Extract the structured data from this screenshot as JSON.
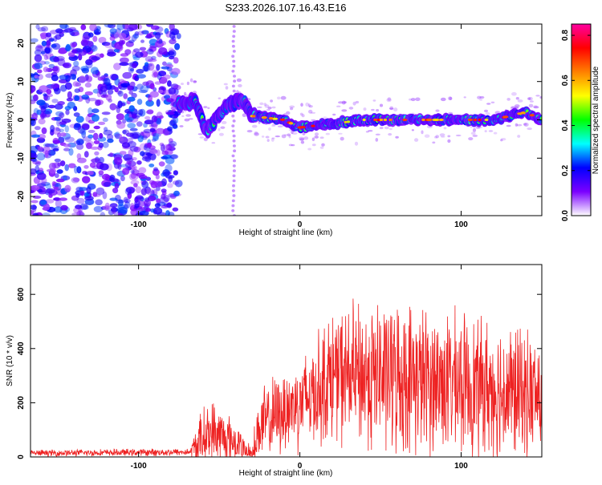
{
  "chart_title": "S233.2026.107.16.43.E16",
  "chart_data": [
    {
      "type": "heatmap",
      "xlabel": "Height of straight line (km)",
      "ylabel": "Frequency (Hz)",
      "xlim": [
        -167,
        150
      ],
      "ylim": [
        -25,
        25
      ],
      "xticks": [
        -100,
        0,
        100
      ],
      "yticks": [
        -20,
        -10,
        0,
        10,
        20
      ],
      "colorbar": {
        "label": "Normalized spectral amplitude",
        "range": [
          0,
          0.85
        ],
        "ticks": [
          0.0,
          0.2,
          0.4,
          0.6,
          0.8
        ],
        "colormap": [
          "#ffffff",
          "#7b00ff",
          "#0000ff",
          "#00ffff",
          "#00ff00",
          "#ffff00",
          "#ff8000",
          "#ff0000",
          "#ff00a0"
        ]
      },
      "description_of_features": {
        "noise_region_x": [
          -167,
          -75
        ],
        "ridge_center_frequency": [
          {
            "x": -75,
            "f": 4
          },
          {
            "x": -65,
            "f": 5
          },
          {
            "x": -58,
            "f": -3
          },
          {
            "x": -45,
            "f": 4
          },
          {
            "x": -35,
            "f": 5
          },
          {
            "x": -30,
            "f": 1
          },
          {
            "x": -10,
            "f": 0
          },
          {
            "x": 0,
            "f": -2
          },
          {
            "x": 20,
            "f": -1
          },
          {
            "x": 40,
            "f": 0
          },
          {
            "x": 60,
            "f": 0
          },
          {
            "x": 80,
            "f": 0
          },
          {
            "x": 100,
            "f": 0
          },
          {
            "x": 120,
            "f": 0
          },
          {
            "x": 140,
            "f": 2
          },
          {
            "x": 150,
            "f": 0
          }
        ],
        "vertical_line_x": -41
      }
    },
    {
      "type": "line",
      "xlabel": "Height of straight line (km)",
      "ylabel": "SNR (10 * v/v)",
      "xlim": [
        -167,
        150
      ],
      "ylim": [
        0,
        710
      ],
      "xticks": [
        -100,
        0,
        100
      ],
      "yticks": [
        0,
        200,
        400,
        600
      ],
      "series_color": "#ee2222",
      "envelope": [
        {
          "x": -167,
          "base": 14,
          "amp": 14
        },
        {
          "x": -68,
          "base": 18,
          "amp": 16
        },
        {
          "x": -62,
          "base": 60,
          "amp": 120
        },
        {
          "x": -55,
          "base": 90,
          "amp": 150
        },
        {
          "x": -45,
          "base": 70,
          "amp": 110
        },
        {
          "x": -38,
          "base": 50,
          "amp": 70
        },
        {
          "x": -30,
          "base": 15,
          "amp": 30
        },
        {
          "x": -25,
          "base": 110,
          "amp": 160
        },
        {
          "x": -10,
          "base": 170,
          "amp": 180
        },
        {
          "x": 5,
          "base": 220,
          "amp": 220
        },
        {
          "x": 20,
          "base": 300,
          "amp": 280
        },
        {
          "x": 45,
          "base": 300,
          "amp": 330
        },
        {
          "x": 70,
          "base": 290,
          "amp": 320
        },
        {
          "x": 100,
          "base": 270,
          "amp": 300
        },
        {
          "x": 130,
          "base": 240,
          "amp": 300
        },
        {
          "x": 150,
          "base": 220,
          "amp": 260
        }
      ]
    }
  ]
}
